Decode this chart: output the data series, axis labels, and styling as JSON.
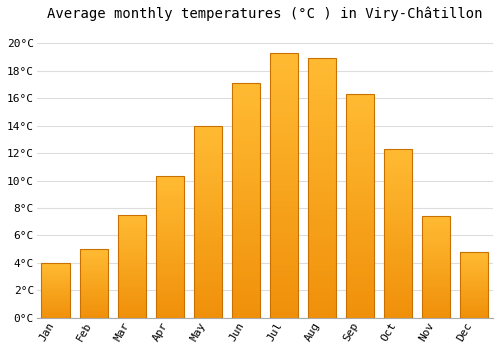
{
  "title": "Average monthly temperatures (°C ) in Viry-Châtillon",
  "months": [
    "Jan",
    "Feb",
    "Mar",
    "Apr",
    "May",
    "Jun",
    "Jul",
    "Aug",
    "Sep",
    "Oct",
    "Nov",
    "Dec"
  ],
  "values": [
    4.0,
    5.0,
    7.5,
    10.3,
    14.0,
    17.1,
    19.3,
    18.9,
    16.3,
    12.3,
    7.4,
    4.8
  ],
  "bar_color_top": "#FFBB33",
  "bar_color_bottom": "#F0900A",
  "bar_edge_color": "#C87000",
  "background_color": "#FFFFFF",
  "grid_color": "#DDDDDD",
  "ylim": [
    0,
    21
  ],
  "yticks": [
    0,
    2,
    4,
    6,
    8,
    10,
    12,
    14,
    16,
    18,
    20
  ],
  "title_fontsize": 10,
  "tick_fontsize": 8,
  "font_family": "monospace"
}
